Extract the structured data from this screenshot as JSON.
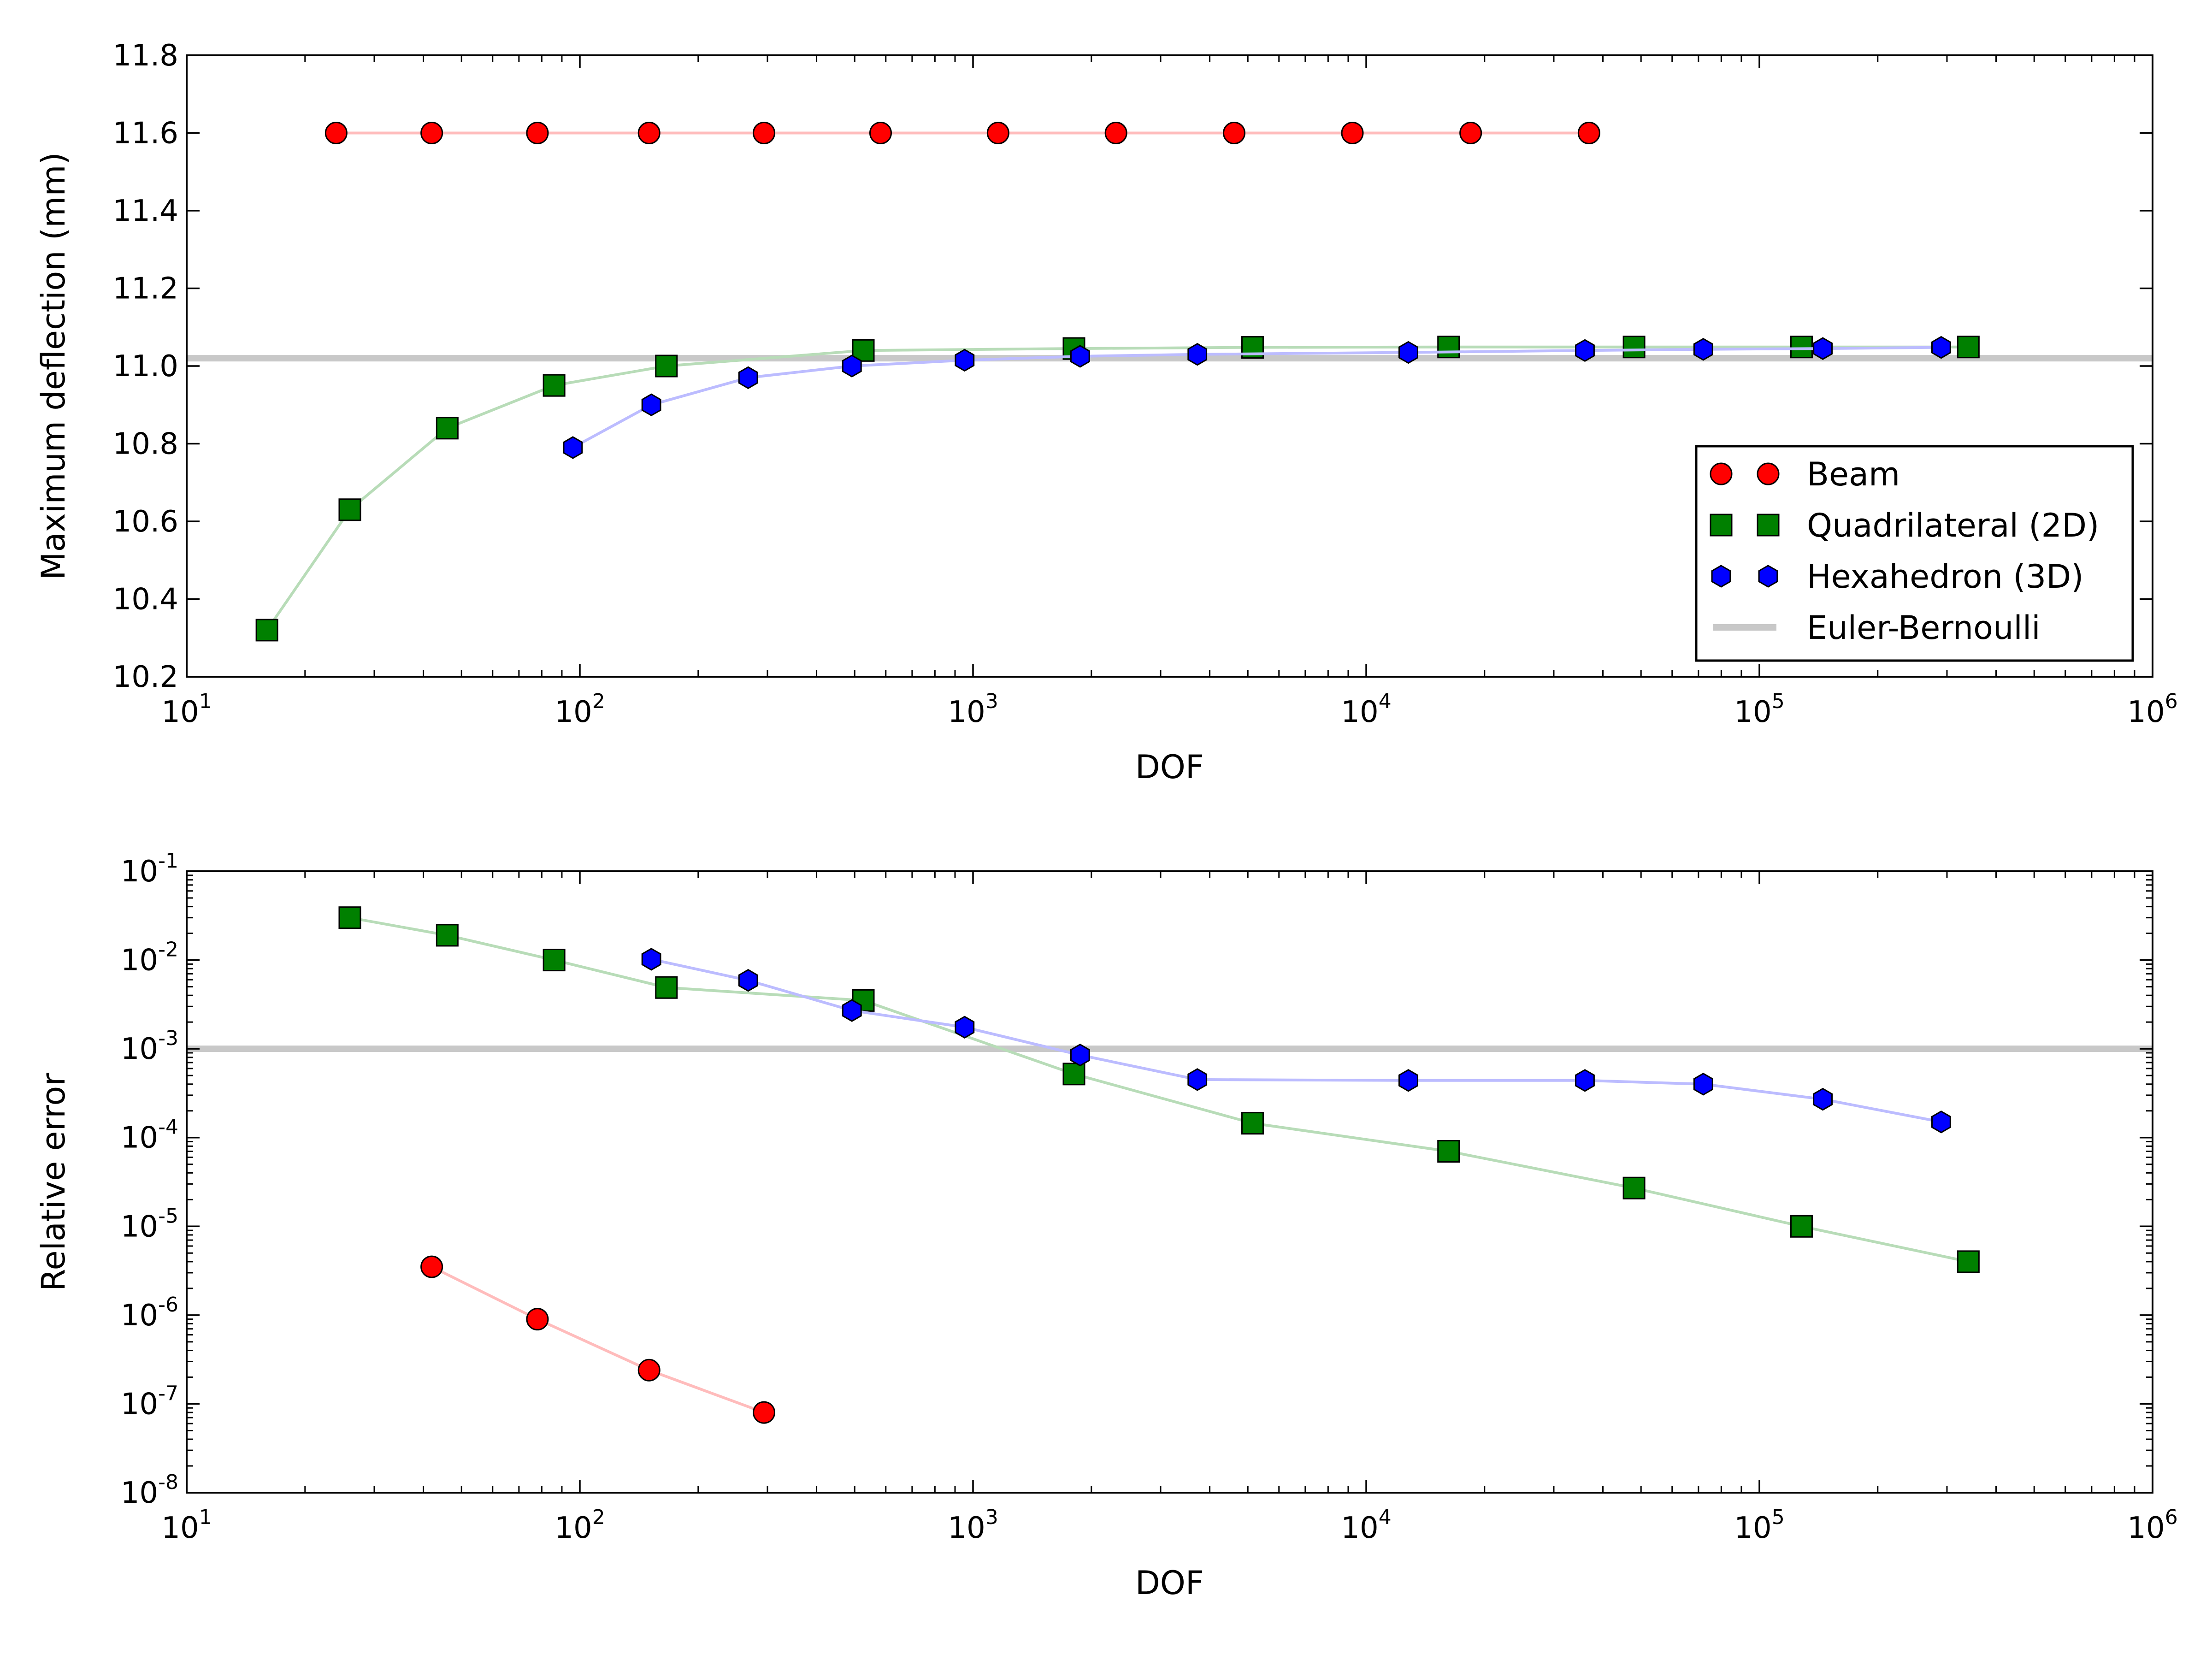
{
  "chart_data": [
    {
      "type": "scatter",
      "xlabel": "DOF",
      "ylabel": "Maximum deflection (mm)",
      "xscale": "log",
      "yscale": "linear",
      "xlim": [
        10,
        1000000
      ],
      "ylim": [
        10.2,
        11.8
      ],
      "x_ticks": [
        {
          "base": "10",
          "exp": "1",
          "value": 10
        },
        {
          "base": "10",
          "exp": "2",
          "value": 100
        },
        {
          "base": "10",
          "exp": "3",
          "value": 1000
        },
        {
          "base": "10",
          "exp": "4",
          "value": 10000
        },
        {
          "base": "10",
          "exp": "5",
          "value": 100000
        },
        {
          "base": "10",
          "exp": "6",
          "value": 1000000
        }
      ],
      "y_ticks": [
        {
          "label": "10.2",
          "value": 10.2
        },
        {
          "label": "10.4",
          "value": 10.4
        },
        {
          "label": "10.6",
          "value": 10.6
        },
        {
          "label": "10.8",
          "value": 10.8
        },
        {
          "label": "11.0",
          "value": 11.0
        },
        {
          "label": "11.2",
          "value": 11.2
        },
        {
          "label": "11.4",
          "value": 11.4
        },
        {
          "label": "11.6",
          "value": 11.6
        },
        {
          "label": "11.8",
          "value": 11.8
        }
      ],
      "hline": {
        "name": "Euler-Bernoulli",
        "value": 11.02,
        "color": "#c8c8c8"
      },
      "legend": {
        "placement": "lower-right",
        "entries": [
          "Beam",
          "Quadrilateral (2D)",
          "Hexahedron (3D)",
          "Euler-Bernoulli"
        ]
      },
      "series": [
        {
          "name": "Beam",
          "marker": "circle",
          "color": "#ff0000",
          "line_color": "#ffbcbc",
          "x": [
            24,
            42,
            78,
            150,
            294,
            582,
            1158,
            2310,
            4614,
            9222,
            18438,
            36870
          ],
          "y": [
            11.6,
            11.6,
            11.6,
            11.6,
            11.6,
            11.6,
            11.6,
            11.6,
            11.6,
            11.6,
            11.6,
            11.6
          ]
        },
        {
          "name": "Quadrilateral (2D)",
          "marker": "square",
          "color": "#008000",
          "line_color": "#b8dcb8",
          "x": [
            16,
            26,
            46,
            86,
            166,
            526,
            1806,
            5140,
            16200,
            48000,
            128000,
            340000
          ],
          "y": [
            10.32,
            10.63,
            10.84,
            10.95,
            11.0,
            11.04,
            11.045,
            11.048,
            11.049,
            11.049,
            11.049,
            11.049
          ]
        },
        {
          "name": "Hexahedron (3D)",
          "marker": "hexagon",
          "color": "#0000ff",
          "line_color": "#bcbcff",
          "x": [
            96,
            152,
            268,
            492,
            952,
            1872,
            3720,
            12800,
            36000,
            72000,
            145000,
            290000
          ],
          "y": [
            10.79,
            10.9,
            10.97,
            11.0,
            11.015,
            11.025,
            11.03,
            11.035,
            11.04,
            11.043,
            11.045,
            11.048
          ]
        }
      ]
    },
    {
      "type": "scatter",
      "xlabel": "DOF",
      "ylabel": "Relative error",
      "xscale": "log",
      "yscale": "log",
      "xlim": [
        10,
        1000000
      ],
      "ylim": [
        1e-08,
        0.1
      ],
      "x_ticks": [
        {
          "base": "10",
          "exp": "1",
          "value": 10
        },
        {
          "base": "10",
          "exp": "2",
          "value": 100
        },
        {
          "base": "10",
          "exp": "3",
          "value": 1000
        },
        {
          "base": "10",
          "exp": "4",
          "value": 10000
        },
        {
          "base": "10",
          "exp": "5",
          "value": 100000
        },
        {
          "base": "10",
          "exp": "6",
          "value": 1000000
        }
      ],
      "y_ticks": [
        {
          "base": "10",
          "exp": "-8",
          "value": 1e-08
        },
        {
          "base": "10",
          "exp": "-7",
          "value": 1e-07
        },
        {
          "base": "10",
          "exp": "-6",
          "value": 1e-06
        },
        {
          "base": "10",
          "exp": "-5",
          "value": 1e-05
        },
        {
          "base": "10",
          "exp": "-4",
          "value": 0.0001
        },
        {
          "base": "10",
          "exp": "-3",
          "value": 0.001
        },
        {
          "base": "10",
          "exp": "-2",
          "value": 0.01
        },
        {
          "base": "10",
          "exp": "-1",
          "value": 0.1
        }
      ],
      "hline": {
        "value": 0.001,
        "color": "#c8c8c8"
      },
      "series": [
        {
          "name": "Beam",
          "marker": "circle",
          "color": "#ff0000",
          "line_color": "#ffbcbc",
          "x": [
            42,
            78,
            150,
            294
          ],
          "y": [
            3.5e-06,
            9e-07,
            2.4e-07,
            8e-08
          ]
        },
        {
          "name": "Quadrilateral (2D)",
          "marker": "square",
          "color": "#008000",
          "line_color": "#b8dcb8",
          "x": [
            26,
            46,
            86,
            166,
            526,
            1806,
            5140,
            16200,
            48000,
            128000,
            340000
          ],
          "y": [
            0.03,
            0.019,
            0.01,
            0.0049,
            0.0035,
            0.00052,
            0.000145,
            7e-05,
            2.7e-05,
            1e-05,
            4e-06
          ]
        },
        {
          "name": "Hexahedron (3D)",
          "marker": "hexagon",
          "color": "#0000ff",
          "line_color": "#bcbcff",
          "x": [
            152,
            268,
            492,
            952,
            1872,
            3720,
            12800,
            36000,
            72000,
            145000,
            290000
          ],
          "y": [
            0.0102,
            0.0059,
            0.0027,
            0.00175,
            0.00085,
            0.00045,
            0.00044,
            0.00044,
            0.0004,
            0.00027,
            0.00015
          ]
        }
      ]
    }
  ]
}
